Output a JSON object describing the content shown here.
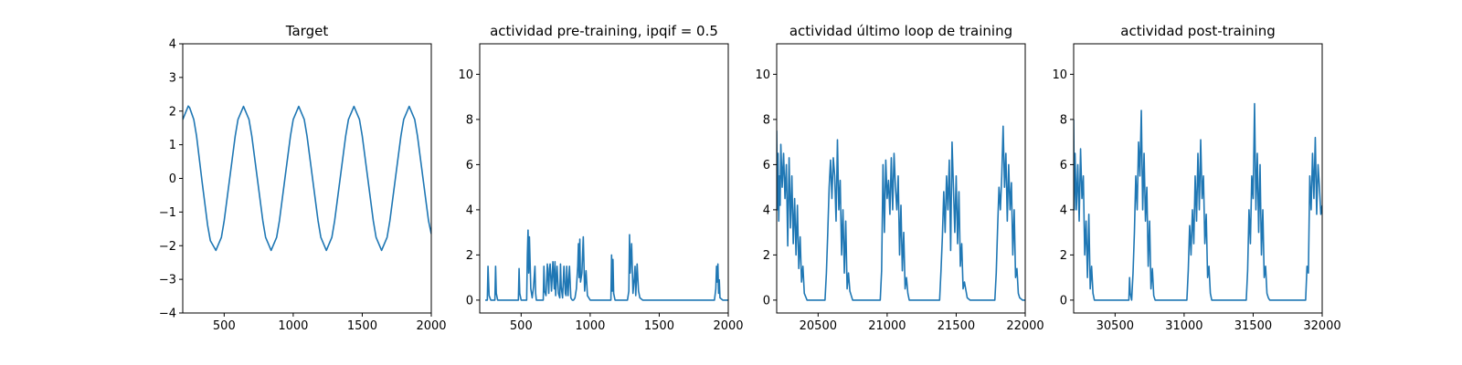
{
  "chart_data": [
    {
      "type": "line",
      "title": "Target",
      "xlim": [
        200,
        2000
      ],
      "ylim": [
        -4,
        4
      ],
      "xticks": [
        500,
        1000,
        1500,
        2000
      ],
      "yticks": [
        -4,
        -3,
        -2,
        -1,
        0,
        1,
        2,
        3,
        4
      ],
      "series": [
        {
          "color": "#1f77b4",
          "x": [
            200,
            240,
            250,
            280,
            300,
            340,
            380,
            400,
            440,
            480,
            500,
            540,
            580,
            600,
            640,
            680,
            700,
            740,
            780,
            800,
            840,
            880,
            900,
            940,
            980,
            1000,
            1040,
            1080,
            1100,
            1140,
            1180,
            1200,
            1240,
            1280,
            1300,
            1340,
            1380,
            1400,
            1440,
            1480,
            1500,
            1540,
            1580,
            1600,
            1640,
            1680,
            1700,
            1740,
            1780,
            1800,
            1840,
            1880,
            1900,
            1940,
            1980,
            2000
          ],
          "y": [
            1.75,
            2.15,
            2.1,
            1.75,
            1.26,
            -0.1,
            -1.39,
            -1.85,
            -2.14,
            -1.75,
            -1.26,
            0.0,
            1.26,
            1.75,
            2.14,
            1.75,
            1.26,
            0.0,
            -1.26,
            -1.75,
            -2.14,
            -1.75,
            -1.26,
            0.0,
            1.26,
            1.75,
            2.14,
            1.75,
            1.26,
            0.0,
            -1.26,
            -1.75,
            -2.14,
            -1.75,
            -1.26,
            0.0,
            1.26,
            1.75,
            2.14,
            1.75,
            1.26,
            0.0,
            -1.26,
            -1.75,
            -2.14,
            -1.75,
            -1.26,
            0.0,
            1.26,
            1.75,
            2.14,
            1.75,
            1.26,
            0.0,
            -1.26,
            -1.65
          ]
        }
      ]
    },
    {
      "type": "line",
      "title": "actividad pre-training, ipqif = 0.5",
      "xlim": [
        200,
        2000
      ],
      "ylim": [
        -0.57,
        11.35
      ],
      "xticks": [
        500,
        1000,
        1500,
        2000
      ],
      "yticks": [
        0,
        2,
        4,
        6,
        8,
        10
      ],
      "series": [
        {
          "color": "#1f77b4",
          "x": [
            240,
            255,
            260,
            268,
            280,
            310,
            315,
            320,
            330,
            340,
            480,
            485,
            490,
            500,
            540,
            545,
            550,
            555,
            560,
            570,
            580,
            590,
            600,
            605,
            610,
            620,
            640,
            660,
            665,
            670,
            680,
            690,
            700,
            705,
            710,
            720,
            730,
            740,
            745,
            750,
            760,
            770,
            780,
            785,
            790,
            800,
            810,
            820,
            825,
            830,
            840,
            850,
            860,
            870,
            880,
            890,
            900,
            910,
            915,
            920,
            925,
            930,
            940,
            950,
            960,
            970,
            980,
            1000,
            1150,
            1155,
            1160,
            1165,
            1170,
            1180,
            1200,
            1270,
            1280,
            1285,
            1290,
            1300,
            1310,
            1320,
            1325,
            1330,
            1340,
            1350,
            1360,
            1380,
            1400,
            1900,
            1910,
            1915,
            1920,
            1925,
            1930,
            1935,
            1940,
            1960,
            2000
          ],
          "y": [
            0,
            0,
            1.5,
            0.2,
            0,
            0,
            1.5,
            0.3,
            0,
            0,
            0,
            1.4,
            0.3,
            0,
            0,
            2.0,
            3.1,
            1.2,
            2.8,
            0.5,
            0.1,
            0.6,
            1.5,
            0.3,
            0,
            0,
            0,
            0,
            1.5,
            0.4,
            0.2,
            1.6,
            0.3,
            1.4,
            1.6,
            0.4,
            1.7,
            0.5,
            1.7,
            0.2,
            1.5,
            0.3,
            0.1,
            1.6,
            0.6,
            0.1,
            1.5,
            0.3,
            0.2,
            1.5,
            0.2,
            1.5,
            0.1,
            0.0,
            0.0,
            0.1,
            0.5,
            1.5,
            2.5,
            1.0,
            2.7,
            0.8,
            1.2,
            2.8,
            0.4,
            1.3,
            0.2,
            0,
            0,
            2.0,
            0.4,
            1.8,
            0.3,
            0.0,
            0,
            0,
            0.4,
            2.9,
            1.2,
            2.5,
            0.3,
            1.0,
            1.5,
            0.2,
            1.6,
            0.4,
            0.1,
            0,
            0,
            0,
            0.5,
            1.5,
            0.8,
            1.6,
            0.3,
            0.9,
            0.1,
            0,
            0
          ]
        }
      ]
    },
    {
      "type": "line",
      "title": "actividad último loop de training",
      "xlim": [
        20200,
        22000
      ],
      "ylim": [
        -0.57,
        11.35
      ],
      "xticks": [
        20500,
        21000,
        21500,
        22000
      ],
      "yticks": [
        0,
        2,
        4,
        6,
        8,
        10
      ],
      "series": [
        {
          "color": "#1f77b4",
          "x": [
            20200,
            20205,
            20210,
            20215,
            20220,
            20225,
            20230,
            20240,
            20250,
            20260,
            20270,
            20280,
            20290,
            20300,
            20310,
            20320,
            20330,
            20340,
            20350,
            20360,
            20370,
            20380,
            20390,
            20400,
            20420,
            20550,
            20560,
            20570,
            20580,
            20590,
            20600,
            20610,
            20620,
            20630,
            20640,
            20650,
            20660,
            20670,
            20680,
            20690,
            20700,
            20710,
            20720,
            20730,
            20740,
            20750,
            20760,
            20780,
            20800,
            20950,
            20960,
            20970,
            20980,
            20990,
            21000,
            21010,
            21020,
            21030,
            21040,
            21050,
            21060,
            21070,
            21080,
            21090,
            21100,
            21110,
            21120,
            21130,
            21140,
            21150,
            21160,
            21180,
            21200,
            21380,
            21390,
            21400,
            21410,
            21420,
            21430,
            21440,
            21450,
            21460,
            21470,
            21480,
            21490,
            21500,
            21510,
            21520,
            21530,
            21540,
            21550,
            21560,
            21580,
            21600,
            21780,
            21790,
            21800,
            21810,
            21820,
            21830,
            21840,
            21850,
            21860,
            21870,
            21880,
            21890,
            21900,
            21910,
            21920,
            21930,
            21940,
            21950,
            21960,
            21980,
            22000
          ],
          "y": [
            7.5,
            4.0,
            6.5,
            3.5,
            5.5,
            4.2,
            6.9,
            5.0,
            6.5,
            4.5,
            6.0,
            2.4,
            6.3,
            3.2,
            5.5,
            2.5,
            4.5,
            2.0,
            4.2,
            1.4,
            2.8,
            0.8,
            1.5,
            0.3,
            0,
            0,
            1.2,
            3.0,
            5.0,
            6.2,
            4.5,
            6.3,
            5.5,
            3.5,
            7.1,
            4.0,
            5.3,
            2.0,
            4.0,
            1.2,
            3.5,
            0.5,
            1.2,
            0.4,
            0.2,
            0.0,
            0.0,
            0,
            0,
            0,
            1.3,
            6.0,
            3.0,
            6.2,
            4.5,
            5.3,
            3.8,
            6.3,
            4.0,
            6.5,
            5.0,
            4.0,
            5.5,
            2.0,
            4.2,
            1.3,
            3.0,
            0.5,
            1.0,
            0.3,
            0.0,
            0,
            0,
            0,
            1.3,
            2.8,
            4.8,
            3.0,
            5.5,
            4.0,
            6.2,
            2.2,
            7.0,
            5.0,
            3.0,
            5.5,
            2.5,
            4.8,
            1.5,
            2.5,
            0.5,
            0.8,
            0.1,
            0,
            0,
            1.2,
            3.2,
            5.0,
            4.0,
            5.5,
            7.7,
            5.0,
            6.5,
            3.5,
            6.0,
            4.0,
            5.2,
            2.0,
            4.0,
            1.0,
            1.4,
            0.3,
            0.1,
            0,
            0
          ]
        }
      ]
    },
    {
      "type": "line",
      "title": "actividad post-training",
      "xlim": [
        30200,
        32000
      ],
      "ylim": [
        -0.57,
        11.35
      ],
      "xticks": [
        30500,
        31000,
        31500,
        32000
      ],
      "yticks": [
        0,
        2,
        4,
        6,
        8,
        10
      ],
      "series": [
        {
          "color": "#1f77b4",
          "x": [
            30200,
            30205,
            30210,
            30220,
            30230,
            30240,
            30250,
            30260,
            30270,
            30280,
            30290,
            30300,
            30310,
            30320,
            30330,
            30340,
            30350,
            30360,
            30380,
            30400,
            30600,
            30605,
            30610,
            30620,
            30630,
            30640,
            30650,
            30660,
            30670,
            30680,
            30690,
            30700,
            30710,
            30720,
            30730,
            30740,
            30750,
            30760,
            30770,
            30780,
            30790,
            30800,
            30820,
            30850,
            31020,
            31030,
            31040,
            31050,
            31060,
            31070,
            31080,
            31090,
            31100,
            31110,
            31120,
            31130,
            31140,
            31150,
            31160,
            31170,
            31180,
            31190,
            31200,
            31220,
            31250,
            31450,
            31460,
            31470,
            31480,
            31490,
            31500,
            31510,
            31520,
            31530,
            31540,
            31550,
            31560,
            31570,
            31580,
            31590,
            31600,
            31610,
            31620,
            31640,
            31660,
            31880,
            31890,
            31900,
            31910,
            31920,
            31930,
            31940,
            31950,
            31960,
            31970,
            31980,
            31990,
            32000
          ],
          "y": [
            8.0,
            4.0,
            6.5,
            4.0,
            6.0,
            3.5,
            6.7,
            4.5,
            5.5,
            2.0,
            3.5,
            1.0,
            3.8,
            0.5,
            1.5,
            0.3,
            0.0,
            0,
            0,
            0,
            0,
            1.0,
            0.3,
            0.0,
            1.2,
            3.0,
            5.5,
            4.0,
            7.0,
            5.5,
            8.4,
            4.0,
            6.5,
            3.5,
            5.0,
            1.5,
            3.5,
            0.5,
            1.4,
            0.2,
            0.0,
            0,
            0,
            0,
            0,
            1.3,
            3.3,
            2.0,
            4.0,
            2.5,
            5.5,
            3.5,
            6.5,
            4.0,
            7.1,
            4.5,
            5.5,
            2.5,
            3.8,
            1.0,
            1.5,
            0.3,
            0.0,
            0,
            0,
            0,
            1.3,
            4.0,
            2.5,
            5.5,
            4.5,
            8.7,
            4.0,
            6.5,
            3.0,
            6.0,
            2.0,
            4.0,
            1.0,
            1.5,
            0.3,
            0.1,
            0.0,
            0,
            0,
            0,
            1.5,
            1.2,
            5.5,
            4.0,
            6.5,
            4.5,
            7.2,
            3.8,
            6.0,
            5.0,
            3.8,
            4.2
          ]
        }
      ]
    }
  ]
}
